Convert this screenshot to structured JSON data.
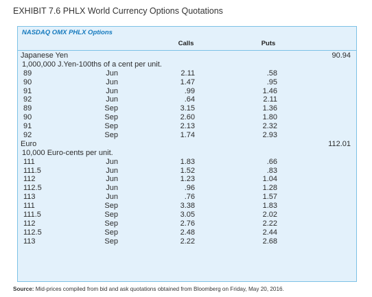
{
  "exhibit_title": "EXHIBIT 7.6 PHLX World Currency Options Quotations",
  "panel_label": "NASDAQ OMX PHLX Options",
  "columns": {
    "calls": "Calls",
    "puts": "Puts"
  },
  "sections": [
    {
      "name": "Japanese Yen",
      "spot": "90.94",
      "unit": "1,000,000 J.Yen-100ths of a cent per unit.",
      "rows": [
        {
          "strike": "89",
          "month": "Jun",
          "calls": "2.11",
          "puts": ".58"
        },
        {
          "strike": "90",
          "month": "Jun",
          "calls": "1.47",
          "puts": ".95"
        },
        {
          "strike": "91",
          "month": "Jun",
          "calls": ".99",
          "puts": "1.46"
        },
        {
          "strike": "92",
          "month": "Jun",
          "calls": ".64",
          "puts": "2.11"
        },
        {
          "strike": "89",
          "month": "Sep",
          "calls": "3.15",
          "puts": "1.36"
        },
        {
          "strike": "90",
          "month": "Sep",
          "calls": "2.60",
          "puts": "1.80"
        },
        {
          "strike": "91",
          "month": "Sep",
          "calls": "2.13",
          "puts": "2.32"
        },
        {
          "strike": "92",
          "month": "Sep",
          "calls": "1.74",
          "puts": "2.93"
        }
      ]
    },
    {
      "name": "Euro",
      "spot": "112.01",
      "unit": "10,000 Euro-cents per unit.",
      "rows": [
        {
          "strike": "111",
          "month": "Jun",
          "calls": "1.83",
          "puts": ".66"
        },
        {
          "strike": "111.5",
          "month": "Jun",
          "calls": "1.52",
          "puts": ".83"
        },
        {
          "strike": "112",
          "month": "Jun",
          "calls": "1.23",
          "puts": "1.04"
        },
        {
          "strike": "112.5",
          "month": "Jun",
          "calls": ".96",
          "puts": "1.28"
        },
        {
          "strike": "113",
          "month": "Jun",
          "calls": ".76",
          "puts": "1.57"
        },
        {
          "strike": "111",
          "month": "Sep",
          "calls": "3.38",
          "puts": "1.83"
        },
        {
          "strike": "111.5",
          "month": "Sep",
          "calls": "3.05",
          "puts": "2.02"
        },
        {
          "strike": "112",
          "month": "Sep",
          "calls": "2.76",
          "puts": "2.22"
        },
        {
          "strike": "112.5",
          "month": "Sep",
          "calls": "2.48",
          "puts": "2.44"
        },
        {
          "strike": "113",
          "month": "Sep",
          "calls": "2.22",
          "puts": "2.68"
        }
      ]
    }
  ],
  "source": {
    "label": "Source:",
    "text": " Mid-prices compiled from bid and ask quotations obtained from Bloomberg on Friday, May 20, 2016."
  }
}
